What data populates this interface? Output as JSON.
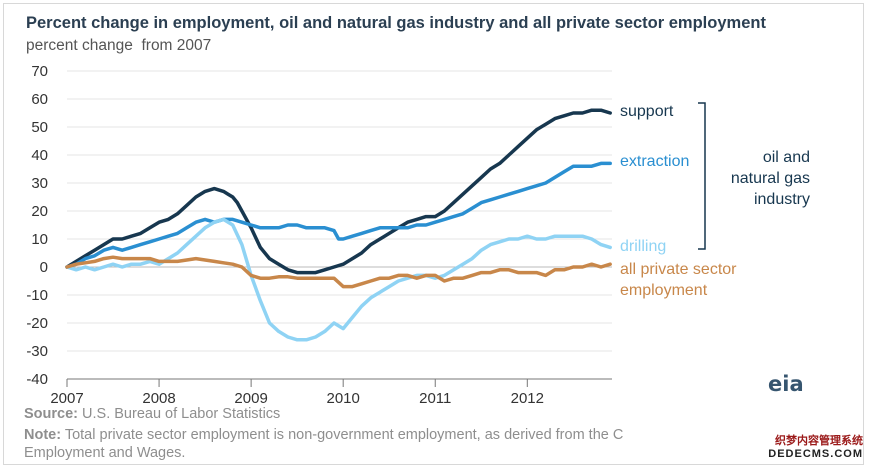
{
  "title": "Percent change in employment, oil and natural gas industry and all private sector employment",
  "subtitle": "percent change  from 2007",
  "footer": {
    "source_label": "Source:",
    "source_text": "U.S. Bureau of Labor Statistics",
    "note_label": "Note:",
    "note_text": "Total private sector employment is non-government employment, as derived from the C",
    "note_text_2": "Employment and Wages."
  },
  "logo": "eia",
  "watermark": {
    "line1": "织梦内容管理系统",
    "line2": "DEDECMS.COM"
  },
  "chart_data": {
    "type": "line",
    "title": "Percent change in employment, oil and natural gas industry and all private sector employment",
    "ylabel": "percent change  from 2007",
    "xlabel": "",
    "ylim": [
      -40,
      70
    ],
    "yticks": [
      70,
      60,
      50,
      40,
      30,
      20,
      10,
      0,
      -10,
      -20,
      -30,
      -40
    ],
    "xlim": [
      2007,
      2012.92
    ],
    "xticks": [
      2007,
      2008,
      2009,
      2010,
      2011,
      2012
    ],
    "grid": true,
    "bracket_label": "oil and natural gas industry",
    "series": [
      {
        "name": "support",
        "color": "#17374f",
        "x": [
          2007.0,
          2007.1,
          2007.2,
          2007.3,
          2007.4,
          2007.5,
          2007.6,
          2007.7,
          2007.8,
          2007.9,
          2008.0,
          2008.1,
          2008.2,
          2008.3,
          2008.4,
          2008.5,
          2008.6,
          2008.7,
          2008.75,
          2008.8,
          2008.85,
          2008.9,
          2009.0,
          2009.1,
          2009.2,
          2009.3,
          2009.4,
          2009.5,
          2009.6,
          2009.7,
          2009.8,
          2009.9,
          2010.0,
          2010.1,
          2010.2,
          2010.3,
          2010.4,
          2010.5,
          2010.6,
          2010.7,
          2010.8,
          2010.9,
          2011.0,
          2011.1,
          2011.2,
          2011.3,
          2011.4,
          2011.5,
          2011.6,
          2011.7,
          2011.8,
          2011.9,
          2012.0,
          2012.1,
          2012.2,
          2012.3,
          2012.4,
          2012.5,
          2012.6,
          2012.7,
          2012.8,
          2012.9
        ],
        "y": [
          0,
          2,
          4,
          6,
          8,
          10,
          10,
          11,
          12,
          14,
          16,
          17,
          19,
          22,
          25,
          27,
          28,
          27,
          26,
          25,
          23,
          20,
          14,
          7,
          3,
          1,
          -1,
          -2,
          -2,
          -2,
          -1,
          0,
          1,
          3,
          5,
          8,
          10,
          12,
          14,
          16,
          17,
          18,
          18,
          20,
          23,
          26,
          29,
          32,
          35,
          37,
          40,
          43,
          46,
          49,
          51,
          53,
          54,
          55,
          55,
          56,
          56,
          55
        ]
      },
      {
        "name": "extraction",
        "color": "#2a8fd1",
        "x": [
          2007.0,
          2007.1,
          2007.2,
          2007.3,
          2007.4,
          2007.5,
          2007.6,
          2007.7,
          2007.8,
          2007.9,
          2008.0,
          2008.1,
          2008.2,
          2008.3,
          2008.4,
          2008.5,
          2008.6,
          2008.7,
          2008.8,
          2008.9,
          2009.0,
          2009.1,
          2009.2,
          2009.3,
          2009.4,
          2009.5,
          2009.6,
          2009.7,
          2009.8,
          2009.9,
          2009.95,
          2010.0,
          2010.1,
          2010.2,
          2010.3,
          2010.4,
          2010.5,
          2010.6,
          2010.7,
          2010.8,
          2010.9,
          2011.0,
          2011.1,
          2011.2,
          2011.3,
          2011.4,
          2011.5,
          2011.6,
          2011.7,
          2011.8,
          2011.9,
          2012.0,
          2012.1,
          2012.2,
          2012.3,
          2012.4,
          2012.5,
          2012.6,
          2012.7,
          2012.8,
          2012.9
        ],
        "y": [
          0,
          1,
          3,
          4,
          6,
          7,
          6,
          7,
          8,
          9,
          10,
          11,
          12,
          14,
          16,
          17,
          16,
          17,
          17,
          16,
          15,
          14,
          14,
          14,
          15,
          15,
          14,
          14,
          14,
          13,
          10,
          10,
          11,
          12,
          13,
          14,
          14,
          14,
          14,
          15,
          15,
          16,
          17,
          18,
          19,
          21,
          23,
          24,
          25,
          26,
          27,
          28,
          29,
          30,
          32,
          34,
          36,
          36,
          36,
          37,
          37
        ]
      },
      {
        "name": "drilling",
        "color": "#8fd3f4",
        "x": [
          2007.0,
          2007.1,
          2007.2,
          2007.3,
          2007.4,
          2007.5,
          2007.6,
          2007.7,
          2007.8,
          2007.9,
          2008.0,
          2008.1,
          2008.2,
          2008.3,
          2008.4,
          2008.5,
          2008.6,
          2008.7,
          2008.8,
          2008.9,
          2009.0,
          2009.1,
          2009.2,
          2009.3,
          2009.4,
          2009.5,
          2009.6,
          2009.7,
          2009.8,
          2009.9,
          2010.0,
          2010.1,
          2010.2,
          2010.3,
          2010.4,
          2010.5,
          2010.6,
          2010.7,
          2010.8,
          2010.9,
          2011.0,
          2011.1,
          2011.2,
          2011.3,
          2011.4,
          2011.5,
          2011.6,
          2011.7,
          2011.8,
          2011.9,
          2012.0,
          2012.1,
          2012.2,
          2012.3,
          2012.4,
          2012.5,
          2012.6,
          2012.7,
          2012.8,
          2012.9
        ],
        "y": [
          0,
          -1,
          0,
          -1,
          0,
          1,
          0,
          1,
          1,
          2,
          1,
          3,
          5,
          8,
          11,
          14,
          16,
          17,
          15,
          8,
          -3,
          -12,
          -20,
          -23,
          -25,
          -26,
          -26,
          -25,
          -23,
          -20,
          -22,
          -18,
          -14,
          -11,
          -9,
          -7,
          -5,
          -4,
          -3,
          -3,
          -4,
          -3,
          -1,
          1,
          3,
          6,
          8,
          9,
          10,
          10,
          11,
          10,
          10,
          11,
          11,
          11,
          11,
          10,
          8,
          7
        ]
      },
      {
        "name": "all private sector employment",
        "color": "#c8874a",
        "x": [
          2007.0,
          2007.1,
          2007.2,
          2007.3,
          2007.4,
          2007.5,
          2007.6,
          2007.7,
          2007.8,
          2007.9,
          2008.0,
          2008.1,
          2008.2,
          2008.3,
          2008.4,
          2008.5,
          2008.6,
          2008.7,
          2008.8,
          2008.9,
          2009.0,
          2009.1,
          2009.2,
          2009.3,
          2009.4,
          2009.5,
          2009.6,
          2009.7,
          2009.8,
          2009.9,
          2010.0,
          2010.1,
          2010.2,
          2010.3,
          2010.4,
          2010.5,
          2010.6,
          2010.7,
          2010.8,
          2010.9,
          2011.0,
          2011.1,
          2011.2,
          2011.3,
          2011.4,
          2011.5,
          2011.6,
          2011.7,
          2011.8,
          2011.9,
          2012.0,
          2012.1,
          2012.2,
          2012.3,
          2012.4,
          2012.5,
          2012.6,
          2012.7,
          2012.8,
          2012.9
        ],
        "y": [
          0,
          1,
          1.5,
          2,
          3,
          3.5,
          3,
          3,
          3,
          3,
          2,
          2,
          2,
          2.5,
          3,
          2.5,
          2,
          1.5,
          1,
          0,
          -3,
          -4,
          -4,
          -3.5,
          -3.5,
          -4,
          -4,
          -4,
          -4,
          -4,
          -7,
          -7,
          -6,
          -5,
          -4,
          -4,
          -3,
          -3,
          -4,
          -3,
          -3,
          -5,
          -4,
          -4,
          -3,
          -2,
          -2,
          -1,
          -1,
          -2,
          -2,
          -2,
          -3,
          -1,
          -1,
          0,
          0,
          1,
          0,
          1
        ]
      }
    ]
  }
}
